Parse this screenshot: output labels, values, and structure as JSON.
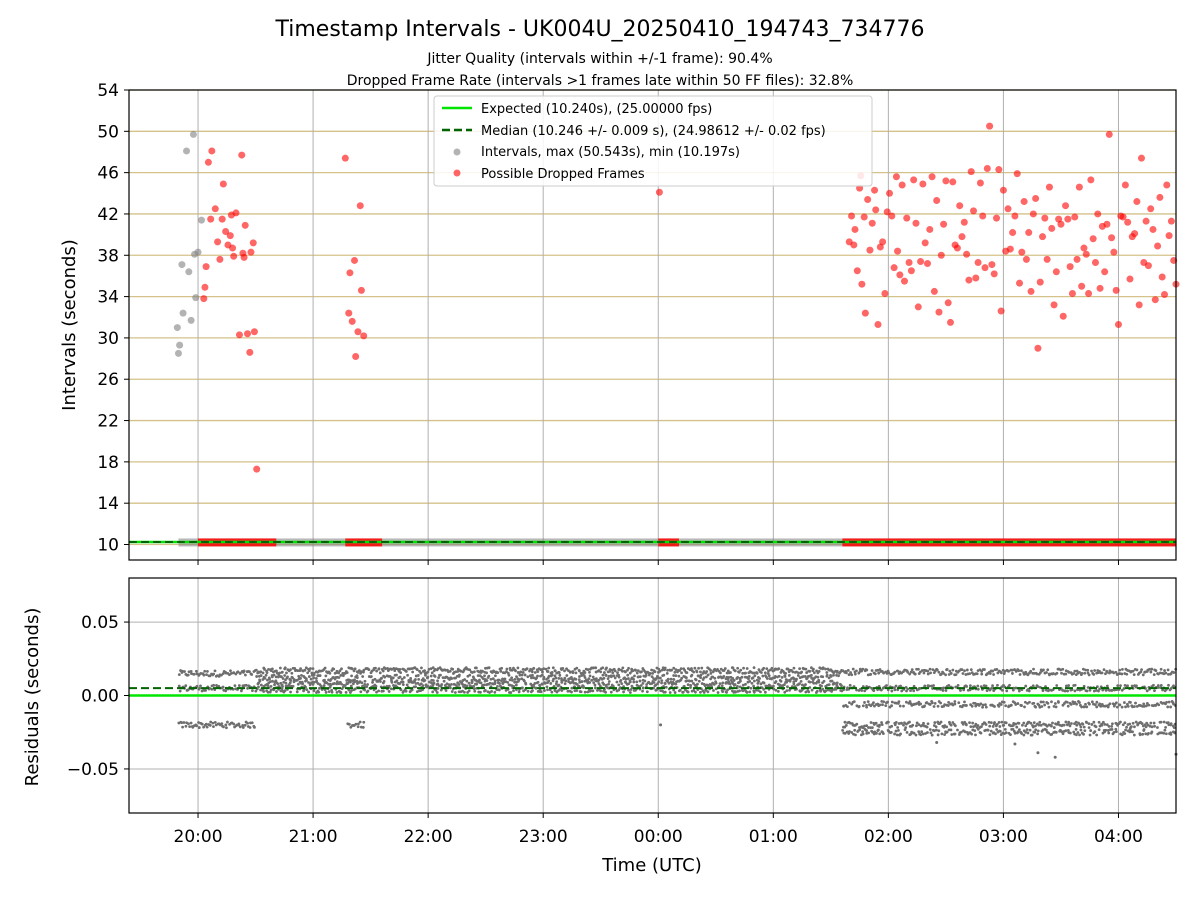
{
  "title": "Timestamp Intervals - UK004U_20250410_194743_734776",
  "subtitle_line1": "Jitter Quality (intervals within +/-1 frame): 90.4%",
  "subtitle_line2": "Dropped Frame Rate (intervals >1 frames late within 50 FF files): 32.8%",
  "colors": {
    "expected": "#00e600",
    "median": "#006400",
    "intervals": "#808080",
    "dropped": "#ff0000",
    "hgrid": "#d4c28a",
    "vgrid": "#b0b0b0",
    "residual_points": "#6e6e6e"
  },
  "chart_data": [
    {
      "type": "scatter",
      "ylabel": "Intervals (seconds)",
      "ylim": [
        8.5,
        54
      ],
      "yticks": [
        10,
        14,
        18,
        22,
        26,
        30,
        34,
        38,
        42,
        46,
        50,
        54
      ],
      "xlim_hours": [
        19.4,
        28.5
      ],
      "grid": true,
      "legend_placement": "top-center",
      "legend": [
        "Expected (10.240s), (25.00000 fps)",
        "Median (10.246 +/- 0.009 s), (24.98612 +/- 0.02 fps)",
        "Intervals, max (50.543s), min (10.197s)",
        "Possible Dropped Frames"
      ],
      "expected_value": 10.24,
      "median_value": 10.246,
      "intervals_band": {
        "y": 10.2,
        "x_ranges": [
          [
            19.83,
            21.3
          ],
          [
            21.3,
            21.55
          ],
          [
            21.55,
            25.6
          ],
          [
            25.6,
            28.5
          ]
        ]
      },
      "dropped_band": {
        "y": 10.2,
        "x_ranges": [
          [
            20.0,
            20.68
          ],
          [
            21.28,
            21.6
          ],
          [
            24.0,
            24.18
          ],
          [
            25.6,
            28.5
          ]
        ]
      },
      "gray_points": [
        [
          19.82,
          31.0
        ],
        [
          19.83,
          28.5
        ],
        [
          19.84,
          29.3
        ],
        [
          19.86,
          37.1
        ],
        [
          19.87,
          32.4
        ],
        [
          19.9,
          48.1
        ],
        [
          19.92,
          36.4
        ],
        [
          19.94,
          31.7
        ],
        [
          19.96,
          49.7
        ],
        [
          19.97,
          38.1
        ],
        [
          19.98,
          33.9
        ],
        [
          20.0,
          38.3
        ],
        [
          20.03,
          41.4
        ]
      ],
      "red_points": [
        [
          20.05,
          33.8
        ],
        [
          20.06,
          34.9
        ],
        [
          20.07,
          36.9
        ],
        [
          20.09,
          47.0
        ],
        [
          20.11,
          41.5
        ],
        [
          20.12,
          48.1
        ],
        [
          20.15,
          42.5
        ],
        [
          20.17,
          39.3
        ],
        [
          20.19,
          37.6
        ],
        [
          20.21,
          41.5
        ],
        [
          20.22,
          44.9
        ],
        [
          20.24,
          40.3
        ],
        [
          20.26,
          39.0
        ],
        [
          20.28,
          39.9
        ],
        [
          20.29,
          41.9
        ],
        [
          20.3,
          38.7
        ],
        [
          20.31,
          37.9
        ],
        [
          20.33,
          42.1
        ],
        [
          20.36,
          30.3
        ],
        [
          20.38,
          47.7
        ],
        [
          20.39,
          38.2
        ],
        [
          20.4,
          37.8
        ],
        [
          20.41,
          40.9
        ],
        [
          20.43,
          30.4
        ],
        [
          20.45,
          28.6
        ],
        [
          20.46,
          38.3
        ],
        [
          20.48,
          39.2
        ],
        [
          20.49,
          30.6
        ],
        [
          20.51,
          17.3
        ],
        [
          21.28,
          47.4
        ],
        [
          21.31,
          32.4
        ],
        [
          21.32,
          36.3
        ],
        [
          21.34,
          31.6
        ],
        [
          21.36,
          37.5
        ],
        [
          21.37,
          28.2
        ],
        [
          21.39,
          30.6
        ],
        [
          21.41,
          42.8
        ],
        [
          21.42,
          34.6
        ],
        [
          21.44,
          30.2
        ],
        [
          24.01,
          44.1
        ],
        [
          25.66,
          39.3
        ],
        [
          25.68,
          41.8
        ],
        [
          25.7,
          39.0
        ],
        [
          25.71,
          40.5
        ],
        [
          25.73,
          36.5
        ],
        [
          25.75,
          44.5
        ],
        [
          25.76,
          45.7
        ],
        [
          25.77,
          35.2
        ],
        [
          25.79,
          41.7
        ],
        [
          25.8,
          32.4
        ],
        [
          25.82,
          43.4
        ],
        [
          25.84,
          38.5
        ],
        [
          25.86,
          41.1
        ],
        [
          25.88,
          44.3
        ],
        [
          25.89,
          42.4
        ],
        [
          25.91,
          31.3
        ],
        [
          25.93,
          38.8
        ],
        [
          25.95,
          39.3
        ],
        [
          25.97,
          34.3
        ],
        [
          25.99,
          42.2
        ],
        [
          26.01,
          44.0
        ],
        [
          26.03,
          41.8
        ],
        [
          26.05,
          36.8
        ],
        [
          26.07,
          45.6
        ],
        [
          26.08,
          38.4
        ],
        [
          26.1,
          36.1
        ],
        [
          26.12,
          44.8
        ],
        [
          26.14,
          35.5
        ],
        [
          26.16,
          41.6
        ],
        [
          26.18,
          37.3
        ],
        [
          26.2,
          36.5
        ],
        [
          26.22,
          45.3
        ],
        [
          26.24,
          41.1
        ],
        [
          26.26,
          33.0
        ],
        [
          26.28,
          37.4
        ],
        [
          26.3,
          44.9
        ],
        [
          26.32,
          39.2
        ],
        [
          26.34,
          37.2
        ],
        [
          26.36,
          40.5
        ],
        [
          26.38,
          45.6
        ],
        [
          26.4,
          34.5
        ],
        [
          26.42,
          43.3
        ],
        [
          26.44,
          32.5
        ],
        [
          26.46,
          38.0
        ],
        [
          26.48,
          41.0
        ],
        [
          26.5,
          45.2
        ],
        [
          26.52,
          33.4
        ],
        [
          26.54,
          31.5
        ],
        [
          26.56,
          45.1
        ],
        [
          26.58,
          39.0
        ],
        [
          26.6,
          38.7
        ],
        [
          26.62,
          42.8
        ],
        [
          26.64,
          39.8
        ],
        [
          26.66,
          41.2
        ],
        [
          26.68,
          38.1
        ],
        [
          26.7,
          35.6
        ],
        [
          26.72,
          46.1
        ],
        [
          26.74,
          42.3
        ],
        [
          26.76,
          35.8
        ],
        [
          26.78,
          37.3
        ],
        [
          26.8,
          45.0
        ],
        [
          26.82,
          41.8
        ],
        [
          26.84,
          36.8
        ],
        [
          26.86,
          46.4
        ],
        [
          26.88,
          50.5
        ],
        [
          26.9,
          37.1
        ],
        [
          26.92,
          36.2
        ],
        [
          26.94,
          41.6
        ],
        [
          26.96,
          46.3
        ],
        [
          26.98,
          32.6
        ],
        [
          27.0,
          44.3
        ],
        [
          27.02,
          38.4
        ],
        [
          27.04,
          42.5
        ],
        [
          27.06,
          38.6
        ],
        [
          27.08,
          40.2
        ],
        [
          27.1,
          41.8
        ],
        [
          27.12,
          45.9
        ],
        [
          27.14,
          35.3
        ],
        [
          27.16,
          38.3
        ],
        [
          27.18,
          43.2
        ],
        [
          27.2,
          37.6
        ],
        [
          27.22,
          40.2
        ],
        [
          27.24,
          34.5
        ],
        [
          27.26,
          42.0
        ],
        [
          27.28,
          43.5
        ],
        [
          27.3,
          29.0
        ],
        [
          27.32,
          35.4
        ],
        [
          27.34,
          39.8
        ],
        [
          27.36,
          41.6
        ],
        [
          27.38,
          37.6
        ],
        [
          27.4,
          44.6
        ],
        [
          27.42,
          40.6
        ],
        [
          27.44,
          33.2
        ],
        [
          27.46,
          36.4
        ],
        [
          27.48,
          41.5
        ],
        [
          27.5,
          41.0
        ],
        [
          27.52,
          32.1
        ],
        [
          27.54,
          42.8
        ],
        [
          27.56,
          41.5
        ],
        [
          27.58,
          36.9
        ],
        [
          27.6,
          34.3
        ],
        [
          27.62,
          41.7
        ],
        [
          27.64,
          37.6
        ],
        [
          27.66,
          44.6
        ],
        [
          27.68,
          35.0
        ],
        [
          27.7,
          38.7
        ],
        [
          27.72,
          38.1
        ],
        [
          27.74,
          34.3
        ],
        [
          27.76,
          45.3
        ],
        [
          27.78,
          39.6
        ],
        [
          27.8,
          37.3
        ],
        [
          27.82,
          42.0
        ],
        [
          27.84,
          34.8
        ],
        [
          27.86,
          40.8
        ],
        [
          27.88,
          36.4
        ],
        [
          27.9,
          41.0
        ],
        [
          27.92,
          49.7
        ],
        [
          27.94,
          39.7
        ],
        [
          27.96,
          38.3
        ],
        [
          27.98,
          34.6
        ],
        [
          28.0,
          31.3
        ],
        [
          28.02,
          41.8
        ],
        [
          28.04,
          41.7
        ],
        [
          28.06,
          44.8
        ],
        [
          28.08,
          41.2
        ],
        [
          28.1,
          35.7
        ],
        [
          28.12,
          39.8
        ],
        [
          28.14,
          40.1
        ],
        [
          28.16,
          43.2
        ],
        [
          28.18,
          33.2
        ],
        [
          28.2,
          47.4
        ],
        [
          28.22,
          37.3
        ],
        [
          28.24,
          41.3
        ],
        [
          28.26,
          37.0
        ],
        [
          28.28,
          42.5
        ],
        [
          28.3,
          40.5
        ],
        [
          28.32,
          33.7
        ],
        [
          28.34,
          38.9
        ],
        [
          28.36,
          43.6
        ],
        [
          28.38,
          35.9
        ],
        [
          28.4,
          34.2
        ],
        [
          28.42,
          44.8
        ],
        [
          28.44,
          39.9
        ],
        [
          28.46,
          41.3
        ],
        [
          28.48,
          37.5
        ],
        [
          28.5,
          35.2
        ]
      ]
    },
    {
      "type": "scatter",
      "title": "",
      "xlabel": "Time (UTC)",
      "ylabel": "Residuals (seconds)",
      "ylim": [
        -0.08,
        0.08
      ],
      "yticks": [
        0.05,
        0.0,
        -0.05
      ],
      "ytick_labels": [
        "0.05",
        "0.00",
        "−0.05"
      ],
      "xlim_hours": [
        19.4,
        28.5
      ],
      "xticks_hours": [
        20,
        21,
        22,
        23,
        24,
        25,
        26,
        27,
        28
      ],
      "xtick_labels": [
        "20:00",
        "21:00",
        "22:00",
        "23:00",
        "00:00",
        "01:00",
        "02:00",
        "03:00",
        "04:00"
      ],
      "grid": true,
      "expected_value": 0.0,
      "median_value": 0.005,
      "residual_bands": [
        {
          "x_range": [
            19.83,
            20.5
          ],
          "levels": [
            0.015,
            0.005,
            -0.02
          ]
        },
        {
          "x_range": [
            20.5,
            21.55
          ],
          "levels": [
            0.017,
            0.012,
            0.008,
            0.004
          ]
        },
        {
          "x_range": [
            21.3,
            21.45
          ],
          "levels": [
            -0.02
          ]
        },
        {
          "x_range": [
            21.55,
            25.6
          ],
          "levels": [
            0.017,
            0.012,
            0.008,
            0.004
          ]
        },
        {
          "x_range": [
            25.6,
            28.5
          ],
          "levels": [
            0.016,
            0.005,
            -0.006,
            -0.02,
            -0.025
          ]
        }
      ],
      "residual_outliers": [
        [
          24.02,
          -0.02
        ],
        [
          27.3,
          -0.039
        ],
        [
          27.45,
          -0.042
        ],
        [
          28.5,
          -0.04
        ],
        [
          26.42,
          -0.032
        ],
        [
          27.1,
          -0.033
        ]
      ]
    }
  ]
}
